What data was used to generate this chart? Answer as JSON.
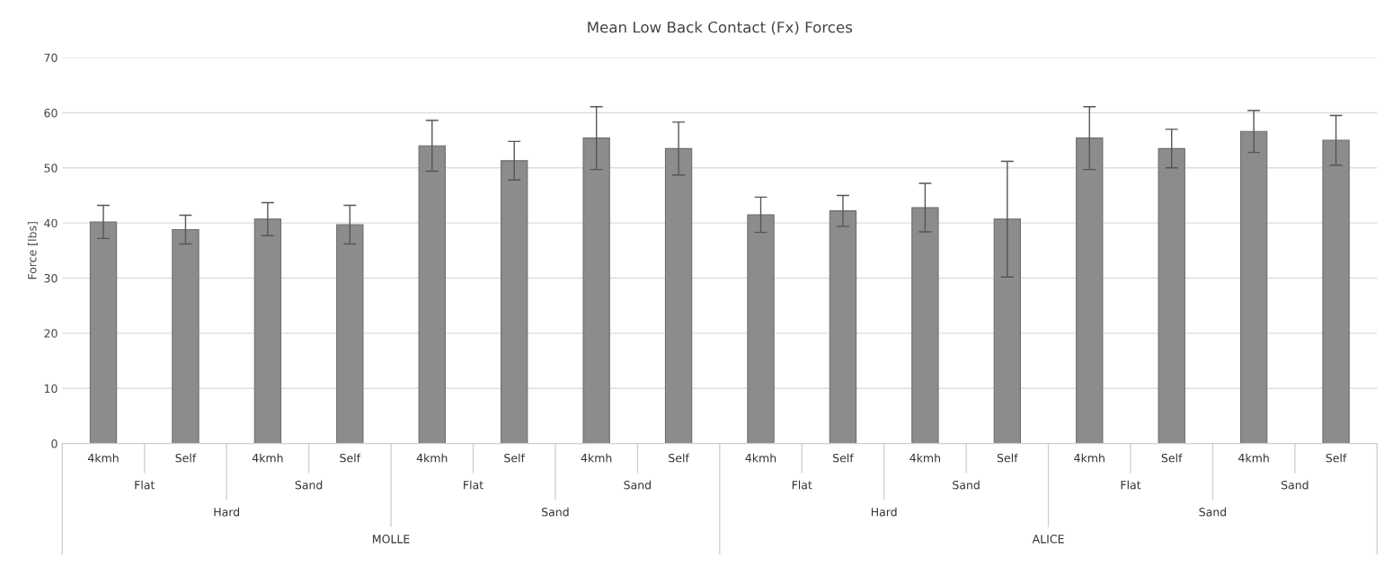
{
  "chart_data": {
    "type": "bar",
    "title": "Mean Low Back Contact (Fx) Forces",
    "ylabel": "Force [lbs]",
    "categories": [
      "4kmh",
      "Self",
      "4kmh",
      "Self",
      "4kmh",
      "Self",
      "4kmh",
      "Self",
      "4kmh",
      "Self",
      "4kmh",
      "Self",
      "4kmh",
      "Self",
      "4kmh",
      "Self"
    ],
    "values": [
      40.2,
      38.8,
      40.7,
      39.7,
      54.0,
      51.3,
      55.4,
      53.5,
      41.5,
      42.2,
      42.8,
      40.7,
      55.4,
      53.5,
      56.6,
      55.0
    ],
    "errors": [
      3,
      2.6,
      3,
      3.5,
      4.6,
      3.5,
      5.7,
      4.8,
      3.2,
      2.8,
      4.4,
      10.5,
      5.7,
      3.5,
      3.8,
      4.5
    ],
    "color": "#8c8c8c",
    "ylim": [
      0,
      70
    ],
    "yticks": [
      0,
      10,
      20,
      30,
      40,
      50,
      60,
      70
    ],
    "grid": "y",
    "annotations": [
      "Flat",
      "Sand",
      "Flat",
      "Sand",
      "Flat",
      "Sand",
      "Flat",
      "Sand",
      "Hard",
      "Sand",
      "Hard",
      "Sand",
      "MOLLE",
      "ALICE"
    ]
  }
}
